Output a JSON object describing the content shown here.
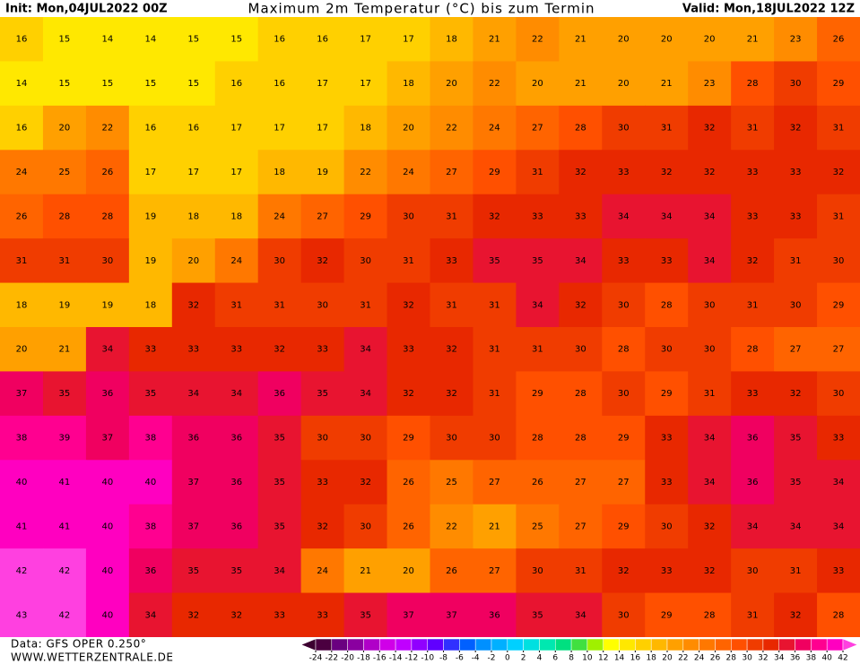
{
  "header": {
    "init": "Init: Mon,04JUL2022 00Z",
    "title": "Maximum 2m Temperatur (°C) bis zum Termin",
    "valid": "Valid: Mon,18JUL2022 12Z"
  },
  "footer": {
    "data": "Data: GFS OPER 0.250°",
    "site": "WWW.WETTERZENTRALE.DE"
  },
  "legend": {
    "ticks": [
      -24,
      -22,
      -20,
      -18,
      -16,
      -14,
      -12,
      -10,
      -8,
      -6,
      -4,
      -2,
      0,
      2,
      4,
      6,
      8,
      10,
      12,
      14,
      16,
      18,
      20,
      22,
      24,
      26,
      28,
      30,
      32,
      34,
      36,
      38,
      40,
      42
    ],
    "colors": [
      "#3c0030",
      "#4b0040",
      "#6a0080",
      "#8a00a0",
      "#b000c8",
      "#d000e8",
      "#c000ff",
      "#9000ff",
      "#6000ff",
      "#3030ff",
      "#0060ff",
      "#0090ff",
      "#00b0ff",
      "#00d0ff",
      "#00e0e0",
      "#00e8b0",
      "#00e080",
      "#40e040",
      "#a0f000",
      "#ffff00",
      "#ffe800",
      "#ffd000",
      "#ffb800",
      "#ffa000",
      "#ff8c00",
      "#ff7800",
      "#ff6400",
      "#ff5000",
      "#f03c00",
      "#e82800",
      "#e81430",
      "#f00060",
      "#ff0090",
      "#ff00c0",
      "#ff40e0"
    ]
  },
  "map": {
    "rows": [
      [
        16,
        15,
        14,
        14,
        15,
        15,
        16,
        16,
        17,
        17,
        18,
        21,
        22,
        21,
        20,
        20,
        20,
        21,
        23,
        26
      ],
      [
        14,
        15,
        15,
        15,
        15,
        16,
        16,
        17,
        17,
        18,
        20,
        22,
        20,
        21,
        20,
        21,
        23,
        28,
        30,
        29
      ],
      [
        16,
        20,
        22,
        16,
        16,
        17,
        17,
        17,
        18,
        20,
        22,
        24,
        27,
        28,
        30,
        31,
        32,
        31,
        32,
        31
      ],
      [
        24,
        25,
        26,
        17,
        17,
        17,
        18,
        19,
        22,
        24,
        27,
        29,
        31,
        32,
        33,
        32,
        32,
        33,
        33,
        32
      ],
      [
        26,
        28,
        28,
        19,
        18,
        18,
        24,
        27,
        29,
        30,
        31,
        32,
        33,
        33,
        34,
        34,
        34,
        33,
        33,
        31
      ],
      [
        31,
        31,
        30,
        19,
        20,
        24,
        30,
        32,
        30,
        31,
        33,
        35,
        35,
        34,
        33,
        33,
        34,
        32,
        31,
        30
      ],
      [
        18,
        19,
        19,
        18,
        32,
        31,
        31,
        30,
        31,
        32,
        31,
        31,
        34,
        32,
        30,
        28,
        30,
        31,
        30,
        29
      ],
      [
        20,
        21,
        34,
        33,
        33,
        33,
        32,
        33,
        34,
        33,
        32,
        31,
        31,
        30,
        28,
        30,
        30,
        28,
        27,
        27
      ],
      [
        37,
        35,
        36,
        35,
        34,
        34,
        36,
        35,
        34,
        32,
        32,
        31,
        29,
        28,
        30,
        29,
        31,
        33,
        32,
        30
      ],
      [
        38,
        39,
        37,
        38,
        36,
        36,
        35,
        30,
        30,
        29,
        30,
        30,
        28,
        28,
        29,
        33,
        34,
        36,
        35,
        33
      ],
      [
        40,
        41,
        40,
        40,
        37,
        36,
        35,
        33,
        32,
        26,
        25,
        27,
        26,
        27,
        27,
        33,
        34,
        36,
        35,
        34
      ],
      [
        41,
        41,
        40,
        38,
        37,
        36,
        35,
        32,
        30,
        26,
        22,
        21,
        25,
        27,
        29,
        30,
        32,
        34,
        34,
        34
      ],
      [
        42,
        42,
        40,
        36,
        35,
        35,
        34,
        24,
        21,
        20,
        26,
        27,
        30,
        31,
        32,
        33,
        32,
        30,
        31,
        33
      ],
      [
        43,
        42,
        40,
        34,
        32,
        32,
        33,
        33,
        35,
        37,
        37,
        36,
        35,
        34,
        30,
        29,
        28,
        31,
        32,
        28
      ]
    ]
  }
}
